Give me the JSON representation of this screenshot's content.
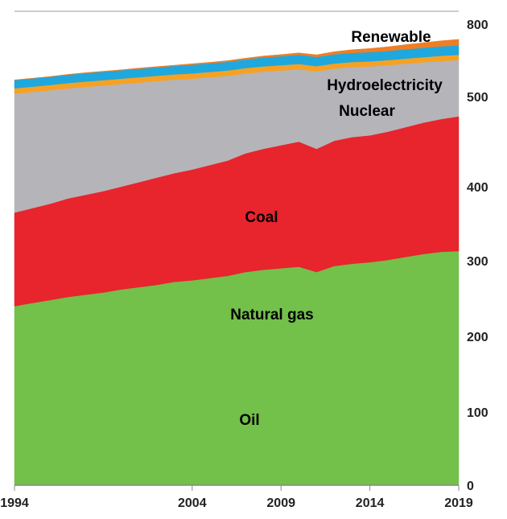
{
  "chart_data": {
    "type": "area",
    "stacked": true,
    "x": [
      1994,
      1995,
      1996,
      1997,
      1998,
      1999,
      2000,
      2001,
      2002,
      2003,
      2004,
      2005,
      2006,
      2007,
      2008,
      2009,
      2010,
      2011,
      2012,
      2013,
      2014,
      2015,
      2016,
      2017,
      2018,
      2019
    ],
    "x_ticks": [
      "1994",
      "2004",
      "2009",
      "2014",
      "2019"
    ],
    "y_ticks": [
      "0",
      "100",
      "200",
      "300",
      "400",
      "500",
      "800"
    ],
    "ylim": [
      0,
      800
    ],
    "grid": "horizontal lines",
    "series": [
      {
        "name": "Oil",
        "color": "#73c04b",
        "label_color": "#000000",
        "values": [
          240,
          244,
          248,
          252,
          255,
          258,
          262,
          265,
          268,
          272,
          274,
          277,
          280,
          285,
          288,
          290,
          292,
          285,
          293,
          296,
          298,
          301,
          305,
          309,
          312,
          313
        ]
      },
      {
        "name": "Natural gas",
        "color": "#e8242d",
        "label_color": "#000000",
        "values": [
          125,
          127,
          129,
          132,
          134,
          136,
          138,
          140,
          142,
          143,
          145,
          147,
          149,
          152,
          154,
          156,
          158,
          157,
          158,
          159,
          159,
          160,
          161,
          162,
          163,
          165
        ]
      },
      {
        "name": "Coal",
        "color": "#b5b4b9",
        "label_color": "#000000",
        "values": [
          147,
          148,
          149,
          150,
          151,
          152,
          152,
          153,
          154,
          155,
          155,
          156,
          157,
          159,
          161,
          162,
          163,
          162,
          165,
          167,
          168,
          169,
          170,
          171,
          172,
          173
        ]
      },
      {
        "name": "Nuclear",
        "color": "#f6a124",
        "label_color": "#000000",
        "values": [
          22,
          22,
          22,
          22,
          22,
          22,
          22,
          22,
          22,
          22,
          22,
          22,
          22,
          22,
          22,
          22,
          22,
          22,
          21,
          21,
          21,
          21,
          21,
          21,
          22,
          22
        ]
      },
      {
        "name": "Hydroelectricity",
        "color": "#1ea8de",
        "label_color": "#000000",
        "values": [
          34,
          34,
          34,
          34,
          35,
          35,
          35,
          35,
          35,
          35,
          36,
          36,
          36,
          36,
          37,
          37,
          38,
          38,
          38,
          38,
          38,
          38,
          39,
          39,
          39,
          39
        ]
      },
      {
        "name": "Renewable",
        "color": "#ee7e25",
        "label_color": "#000000",
        "values": [
          1,
          1,
          1,
          2,
          2,
          2,
          2,
          3,
          3,
          3,
          4,
          4,
          5,
          5,
          6,
          7,
          8,
          9,
          11,
          13,
          15,
          17,
          19,
          21,
          23,
          25
        ]
      }
    ]
  }
}
